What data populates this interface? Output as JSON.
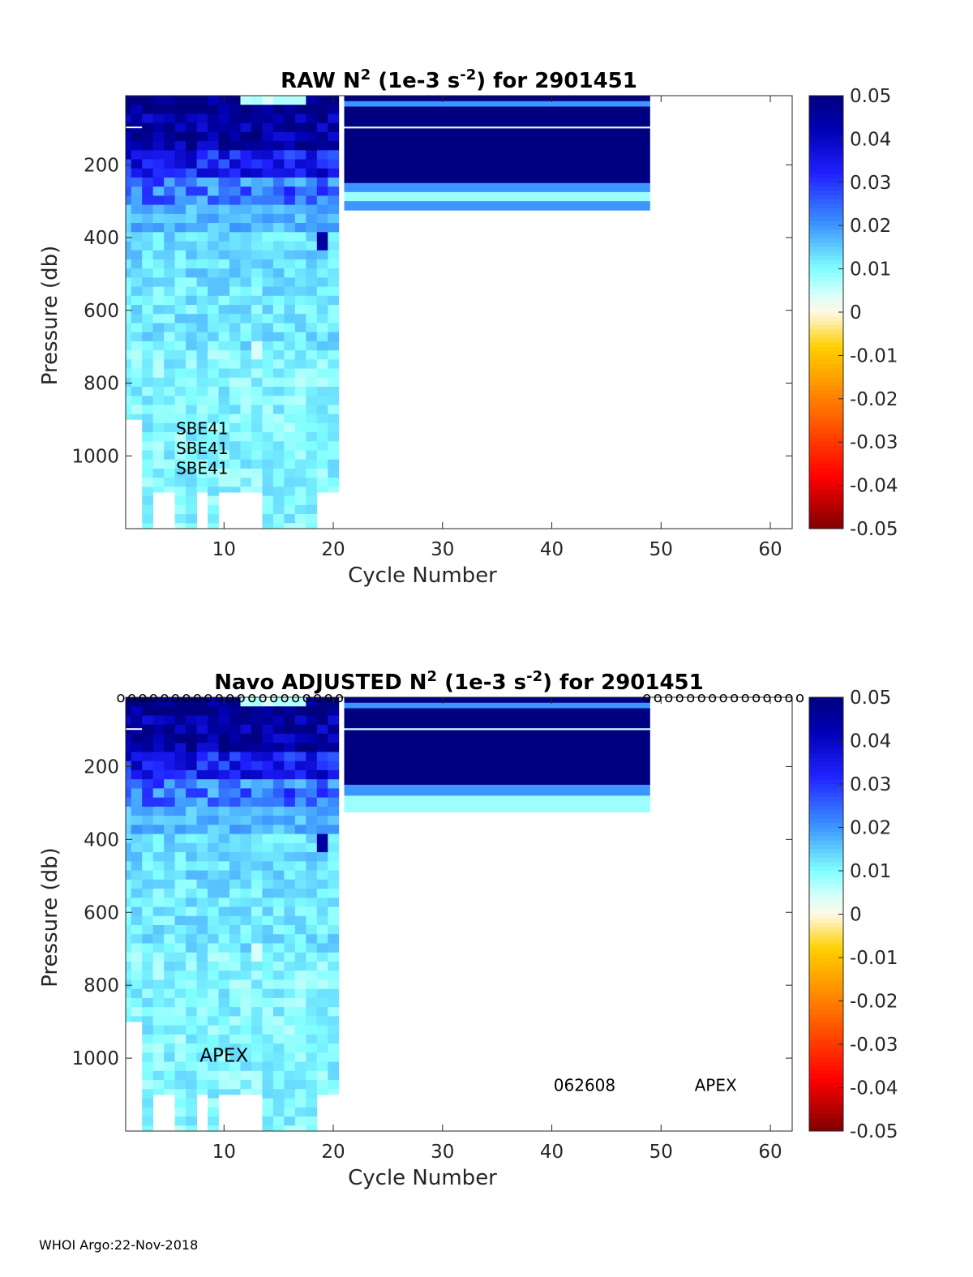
{
  "footer": "WHOI Argo:22-Nov-2018",
  "colormap": {
    "anchors": [
      {
        "v": -0.05,
        "c": "#800000"
      },
      {
        "v": -0.038,
        "c": "#ff0000"
      },
      {
        "v": -0.02,
        "c": "#ff8000"
      },
      {
        "v": -0.008,
        "c": "#ffd000"
      },
      {
        "v": 0.0,
        "c": "#fff8e8"
      },
      {
        "v": 0.004,
        "c": "#d8fff8"
      },
      {
        "v": 0.01,
        "c": "#80ffff"
      },
      {
        "v": 0.02,
        "c": "#3d96ff"
      },
      {
        "v": 0.032,
        "c": "#2020ff"
      },
      {
        "v": 0.042,
        "c": "#0000b4"
      },
      {
        "v": 0.05,
        "c": "#000080"
      }
    ]
  },
  "chart_data": [
    {
      "type": "heatmap",
      "title_parts": [
        "RAW N",
        "2",
        " (1e-3 s",
        "-2",
        ") for 2901451"
      ],
      "xlabel": "Cycle Number",
      "ylabel": "Pressure (db)",
      "xlim": [
        1,
        62
      ],
      "ylim": [
        1200,
        10
      ],
      "xticks": [
        10,
        20,
        30,
        40,
        50,
        60
      ],
      "yticks": [
        200,
        400,
        600,
        800,
        1000
      ],
      "colorbar": {
        "clim": [
          -0.05,
          0.05
        ],
        "ticks": [
          "0.05",
          "0.04",
          "0.03",
          "0.02",
          "0.01",
          "0",
          "-0.01",
          "-0.02",
          "-0.03",
          "-0.04",
          "-0.05"
        ]
      },
      "cycles_range": [
        1,
        20
      ],
      "deep_cycles": [
        3,
        6,
        7,
        9,
        14,
        15,
        16,
        17,
        18
      ],
      "block": {
        "x": [
          21,
          49
        ],
        "layers": [
          {
            "p": [
              10,
              25
            ],
            "v": 0.05
          },
          {
            "p": [
              25,
              40
            ],
            "v": 0.02
          },
          {
            "p": [
              40,
              60
            ],
            "v": 0.05
          },
          {
            "p": [
              60,
              95
            ],
            "v": 0.05
          },
          {
            "p": [
              95,
              100
            ],
            "v": 0.005
          },
          {
            "p": [
              100,
              250
            ],
            "v": 0.05
          },
          {
            "p": [
              250,
              275
            ],
            "v": 0.02
          },
          {
            "p": [
              275,
              300
            ],
            "v": 0.008
          },
          {
            "p": [
              300,
              325
            ],
            "v": 0.02
          }
        ]
      },
      "annotations": [
        {
          "text": "SBE41",
          "x": 8,
          "p": 940,
          "size": 20
        },
        {
          "text": "SBE41",
          "x": 8,
          "p": 995,
          "size": 20
        },
        {
          "text": "SBE41",
          "x": 8,
          "p": 1050,
          "size": 20
        }
      ],
      "markers": null
    },
    {
      "type": "heatmap",
      "title_parts": [
        "Navo  ADJUSTED N",
        "2",
        " (1e-3 s",
        "-2",
        ") for 2901451"
      ],
      "xlabel": "Cycle Number",
      "ylabel": "Pressure (db)",
      "xlim": [
        1,
        62
      ],
      "ylim": [
        1200,
        10
      ],
      "xticks": [
        10,
        20,
        30,
        40,
        50,
        60
      ],
      "yticks": [
        200,
        400,
        600,
        800,
        1000
      ],
      "colorbar": {
        "clim": [
          -0.05,
          0.05
        ],
        "ticks": [
          "0.05",
          "0.04",
          "0.03",
          "0.02",
          "0.01",
          "0",
          "-0.01",
          "-0.02",
          "-0.03",
          "-0.04",
          "-0.05"
        ]
      },
      "cycles_range": [
        1,
        20
      ],
      "deep_cycles": [
        3,
        6,
        7,
        9,
        14,
        15,
        16,
        17,
        18
      ],
      "block": {
        "x": [
          21,
          49
        ],
        "layers": [
          {
            "p": [
              10,
              25
            ],
            "v": 0.05
          },
          {
            "p": [
              25,
              40
            ],
            "v": 0.02
          },
          {
            "p": [
              40,
              60
            ],
            "v": 0.05
          },
          {
            "p": [
              60,
              95
            ],
            "v": 0.05
          },
          {
            "p": [
              95,
              100
            ],
            "v": 0.005
          },
          {
            "p": [
              100,
              250
            ],
            "v": 0.05
          },
          {
            "p": [
              250,
              280
            ],
            "v": 0.02
          },
          {
            "p": [
              280,
              325
            ],
            "v": 0.008
          }
        ]
      },
      "annotations": [
        {
          "text": "APEX",
          "x": 10,
          "p": 1010,
          "size": 23
        },
        {
          "text": "062608",
          "x": 43,
          "p": 1090,
          "size": 20
        },
        {
          "text": "APEX",
          "x": 55,
          "p": 1090,
          "size": 20
        }
      ],
      "markers": {
        "glyph": "o",
        "p": 10,
        "x_ranges": [
          [
            1,
            21
          ],
          [
            49,
            63
          ]
        ]
      }
    }
  ]
}
